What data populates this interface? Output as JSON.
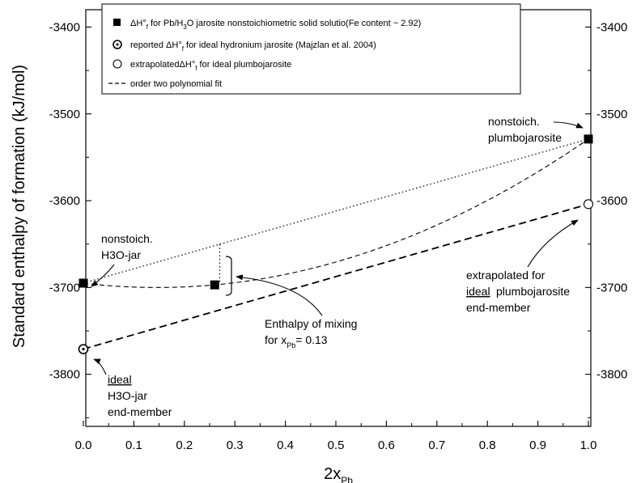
{
  "chart_data": {
    "type": "scatter",
    "ylabel": "Standard enthalpy of formation (kJ/mol)",
    "xlabel": {
      "main": "2x",
      "sub": "Pb"
    },
    "xlim": [
      0.0,
      1.0
    ],
    "ylim": [
      -3860,
      -3380
    ],
    "x_ticks": [
      "0.0",
      "0.1",
      "0.2",
      "0.3",
      "0.4",
      "0.5",
      "0.6",
      "0.7",
      "0.8",
      "0.9",
      "1.0"
    ],
    "y_ticks": [
      "-3400",
      "-3500",
      "-3600",
      "-3700",
      "-3800"
    ],
    "y_ticks_right": [
      "-3400",
      "-3500",
      "-3600",
      "-3700",
      "-3800"
    ],
    "grid": false,
    "legend_position": "top",
    "legend": [
      {
        "marker": "filled-square",
        "text": "ΔH°f for Pb/H3O jarosite nonstoichiometric solid solutio(Fe content ~ 2.92)"
      },
      {
        "marker": "dotted-circle",
        "text": "reported ΔH°f for ideal hydronium jarosite (Majzlan et al. 2004)"
      },
      {
        "marker": "open-circle",
        "text": "extrapolated ΔH°f for ideal plumbojarosite"
      },
      {
        "marker": "dashed-line",
        "text": "order two polynomial fit"
      }
    ],
    "series": [
      {
        "name": "ΔH°f for Pb/H3O jarosite nonstoichiometric solid solutio(Fe content ~ 2.92)",
        "marker": "filled-square",
        "points": [
          {
            "x": 0.0,
            "y": -3695
          },
          {
            "x": 0.26,
            "y": -3697
          },
          {
            "x": 1.0,
            "y": -3529
          }
        ]
      },
      {
        "name": "reported ΔH°f for ideal hydronium jarosite (Majzlan et al. 2004)",
        "marker": "dotted-circle",
        "points": [
          {
            "x": 0.0,
            "y": -3771
          }
        ]
      },
      {
        "name": "extrapolated ΔH°f for ideal plumbojarosite",
        "marker": "open-circle",
        "points": [
          {
            "x": 1.0,
            "y": -3604
          }
        ]
      },
      {
        "name": "order two polynomial fit",
        "style": "dashed",
        "points": [
          {
            "x": 0.0,
            "y": -3695
          },
          {
            "x": 0.26,
            "y": -3697
          },
          {
            "x": 1.0,
            "y": -3529
          }
        ]
      }
    ],
    "reference_lines": [
      {
        "style": "dotted",
        "from": {
          "x": 0.0,
          "y": -3695
        },
        "to": {
          "x": 1.0,
          "y": -3529
        }
      },
      {
        "style": "dashed-bold",
        "from": {
          "x": 0.0,
          "y": -3771
        },
        "to": {
          "x": 1.0,
          "y": -3604
        }
      }
    ],
    "annotations": [
      {
        "id": "nonstoich-plumbojarosite",
        "lines": [
          "nonstoich.",
          "plumbojarosite"
        ]
      },
      {
        "id": "nonstoich-h3o",
        "lines": [
          "nonstoich.",
          "H3O-jar"
        ]
      },
      {
        "id": "ideal-h3o",
        "lines": [
          "ideal",
          "H3O-jar",
          "end-member"
        ]
      },
      {
        "id": "extrapolated-plumbo",
        "lines": [
          "extrapolated for",
          "ideal plumbojarosite",
          "end-member"
        ]
      },
      {
        "id": "mixing",
        "lines": [
          "Enthalpy of mixing",
          "for x",
          "Pb",
          "= 0.13"
        ]
      }
    ]
  }
}
